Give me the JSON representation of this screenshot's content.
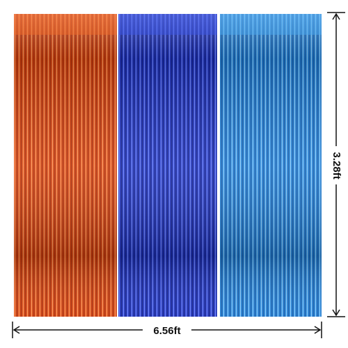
{
  "dimensions": {
    "height": "3.28ft",
    "width": "6.56ft"
  }
}
